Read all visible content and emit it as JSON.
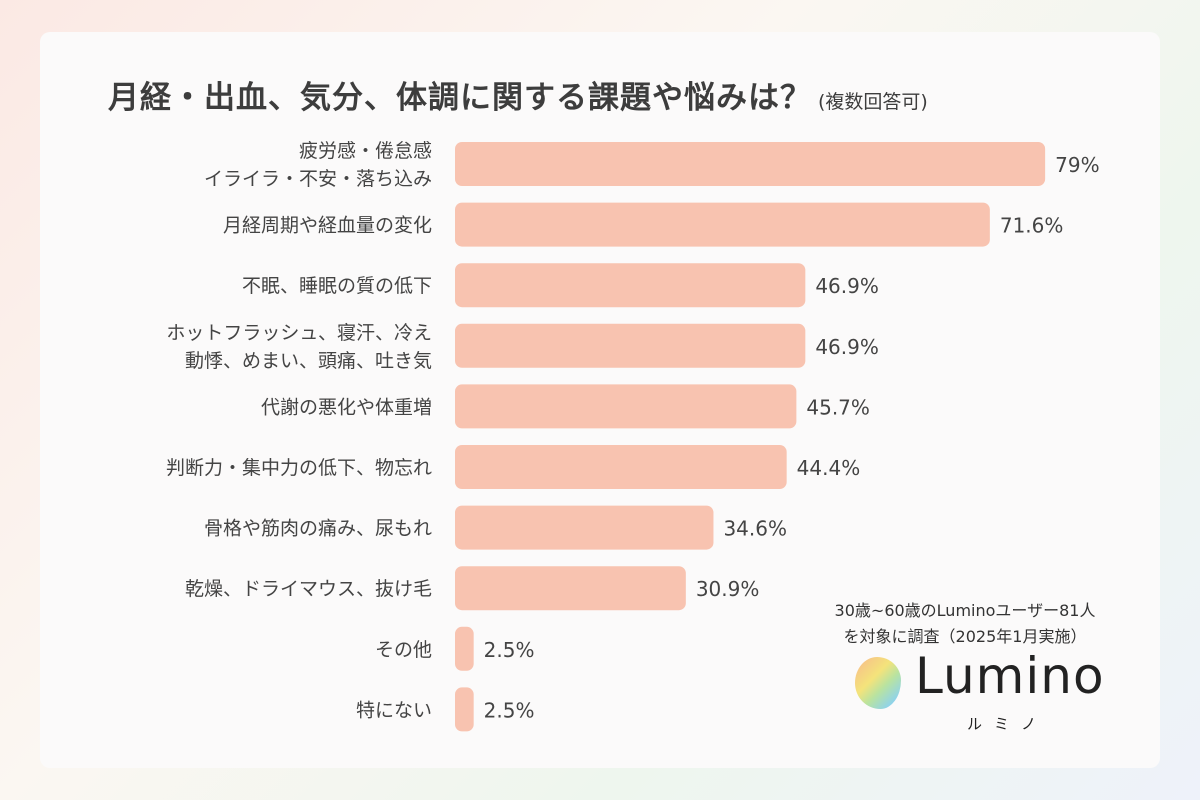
{
  "chart_data": {
    "type": "bar",
    "orientation": "horizontal",
    "title": "月経・出血、気分、体調に関する課題や悩みは？",
    "subtitle": "(複数回答可)",
    "categories": [
      [
        "疲労感・倦怠感",
        "イライラ・不安・落ち込み"
      ],
      [
        "月経周期や経血量の変化"
      ],
      [
        "不眠、睡眠の質の低下"
      ],
      [
        "ホットフラッシュ、寝汗、冷え",
        "動悸、めまい、頭痛、吐き気"
      ],
      [
        "代謝の悪化や体重増"
      ],
      [
        "判断力・集中力の低下、物忘れ"
      ],
      [
        "骨格や筋肉の痛み、尿もれ"
      ],
      [
        "乾燥、ドライマウス、抜け毛"
      ],
      [
        "その他"
      ],
      [
        "特にない"
      ]
    ],
    "values": [
      79,
      71.6,
      46.9,
      46.9,
      45.7,
      44.4,
      34.6,
      30.9,
      2.5,
      2.5
    ],
    "value_labels": [
      "79%",
      "71.6%",
      "46.9%",
      "46.9%",
      "45.7%",
      "44.4%",
      "34.6%",
      "30.9%",
      "2.5%",
      "2.5%"
    ],
    "xlim": [
      0,
      100
    ],
    "grid": false,
    "bar_color": "#f8c3b0"
  },
  "note": {
    "line1": "30歳~60歳のLuminoユーザー81人",
    "line2": "を対象に調査（2025年1月実施）"
  },
  "logo": {
    "name": "Lumino",
    "kana": "ルミノ"
  }
}
